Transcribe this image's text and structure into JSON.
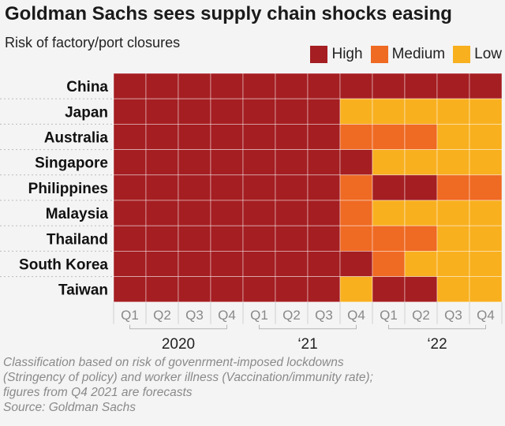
{
  "title": "Goldman Sachs sees supply chain shocks easing",
  "subtitle": "Risk of factory/port closures",
  "legend": [
    {
      "label": "High",
      "key": "H"
    },
    {
      "label": "Medium",
      "key": "M"
    },
    {
      "label": "Low",
      "key": "L"
    }
  ],
  "colors": {
    "H": "#a51e22",
    "M": "#ef6a23",
    "L": "#f8b01f",
    "grid": "#bbbbbb",
    "axis_text": "#888888",
    "year_text": "#222222"
  },
  "chart_data": {
    "type": "heatmap",
    "title": "Goldman Sachs sees supply chain shocks easing",
    "subtitle": "Risk of factory/port closures",
    "categories_y": [
      "China",
      "Japan",
      "Australia",
      "Singapore",
      "Philippines",
      "Malaysia",
      "Thailand",
      "South Korea",
      "Taiwan"
    ],
    "categories_x": [
      "Q1",
      "Q2",
      "Q3",
      "Q4",
      "Q1",
      "Q2",
      "Q3",
      "Q4",
      "Q1",
      "Q2",
      "Q3",
      "Q4"
    ],
    "years": [
      {
        "label": "2020",
        "quarters": [
          0,
          3
        ]
      },
      {
        "label": "‘21",
        "quarters": [
          4,
          7
        ]
      },
      {
        "label": "‘22",
        "quarters": [
          8,
          11
        ]
      }
    ],
    "values": [
      [
        "H",
        "H",
        "H",
        "H",
        "H",
        "H",
        "H",
        "H",
        "H",
        "H",
        "H",
        "H"
      ],
      [
        "H",
        "H",
        "H",
        "H",
        "H",
        "H",
        "H",
        "L",
        "L",
        "L",
        "L",
        "L"
      ],
      [
        "H",
        "H",
        "H",
        "H",
        "H",
        "H",
        "H",
        "M",
        "M",
        "M",
        "L",
        "L"
      ],
      [
        "H",
        "H",
        "H",
        "H",
        "H",
        "H",
        "H",
        "H",
        "L",
        "L",
        "L",
        "L"
      ],
      [
        "H",
        "H",
        "H",
        "H",
        "H",
        "H",
        "H",
        "M",
        "H",
        "H",
        "M",
        "M"
      ],
      [
        "H",
        "H",
        "H",
        "H",
        "H",
        "H",
        "H",
        "M",
        "L",
        "L",
        "L",
        "L"
      ],
      [
        "H",
        "H",
        "H",
        "H",
        "H",
        "H",
        "H",
        "M",
        "M",
        "M",
        "L",
        "L"
      ],
      [
        "H",
        "H",
        "H",
        "H",
        "H",
        "H",
        "H",
        "H",
        "M",
        "L",
        "L",
        "L"
      ],
      [
        "H",
        "H",
        "H",
        "H",
        "H",
        "H",
        "H",
        "L",
        "H",
        "H",
        "L",
        "L"
      ]
    ],
    "legend": {
      "High": "H",
      "Medium": "M",
      "Low": "L"
    }
  },
  "footnote": [
    "Classification based on risk of govenrment-imposed lockdowns",
    "(Stringency of policy) and worker illness (Vaccination/immunity rate);",
    "figures from Q4 2021 are forecasts",
    "Source: Goldman Sachs"
  ]
}
